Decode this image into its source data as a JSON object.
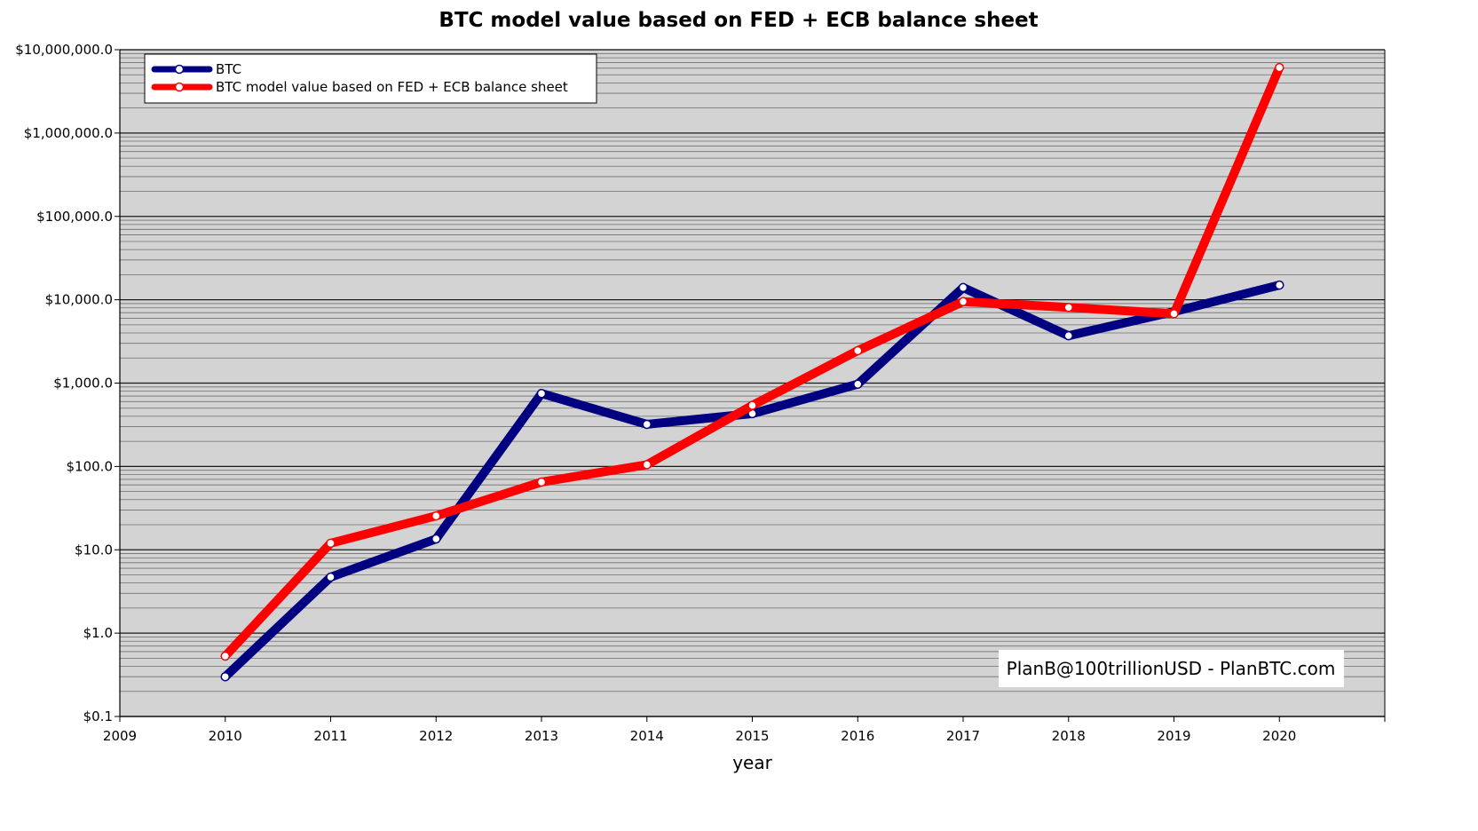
{
  "chart_data": {
    "type": "line",
    "title": "BTC model value based on FED + ECB balance sheet",
    "xlabel": "year",
    "ylabel": "",
    "x_ticks": [
      "2009",
      "2010",
      "2011",
      "2012",
      "2013",
      "2014",
      "2015",
      "2016",
      "2017",
      "2018",
      "2019",
      "2020"
    ],
    "y_ticks": [
      "$0.1",
      "$1.0",
      "$10.0",
      "$100.0",
      "$1,000.0",
      "$10,000.0",
      "$100,000.0",
      "$1,000,000.0",
      "$10,000,000.0"
    ],
    "xlim": [
      2009,
      2021
    ],
    "ylim": [
      0.1,
      10000000
    ],
    "y_scale": "log",
    "grid": true,
    "legend_position": "top-left",
    "plot_background": "#d3d3d3",
    "series": [
      {
        "name": "BTC",
        "color": "#000080",
        "x": [
          2010,
          2011,
          2012,
          2013,
          2014,
          2015,
          2016,
          2017,
          2018,
          2019,
          2020
        ],
        "values": [
          0.3,
          4.7,
          13.5,
          750,
          320,
          430,
          970,
          14000,
          3700,
          7200,
          15000
        ]
      },
      {
        "name": "BTC model value based on FED + ECB balance sheet",
        "color": "#ff0000",
        "x": [
          2010,
          2011,
          2012,
          2013,
          2014,
          2015,
          2016,
          2017,
          2018,
          2019,
          2020
        ],
        "values": [
          0.53,
          12,
          25.5,
          65,
          105,
          540,
          2450,
          9500,
          8100,
          6800,
          6100000
        ]
      }
    ],
    "annotation": "PlanB@100trillionUSD  -  PlanBTC.com"
  }
}
